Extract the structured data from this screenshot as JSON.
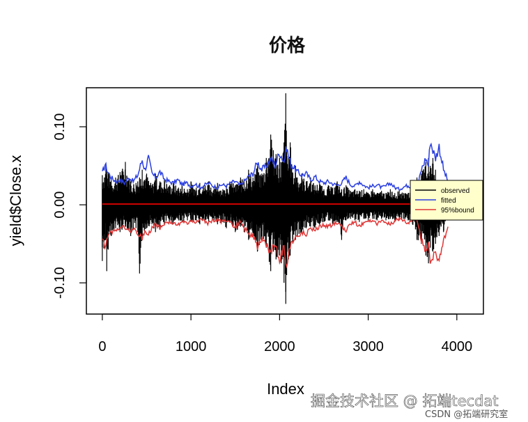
{
  "chart_data": {
    "type": "line",
    "title": "价格",
    "xlabel": "Index",
    "ylabel": "yield$Close.x",
    "xlim": [
      -180,
      4300
    ],
    "ylim": [
      -0.14,
      0.15
    ],
    "x_ticks": [
      0,
      1000,
      2000,
      3000,
      4000
    ],
    "x_tick_labels": [
      "0",
      "1000",
      "2000",
      "3000",
      "4000"
    ],
    "y_ticks": [
      -0.1,
      0.0,
      0.1
    ],
    "y_tick_labels": [
      "-0.10",
      "0.00",
      "0.10"
    ],
    "grid": false,
    "legend_position": "right",
    "series": [
      {
        "name": "observed",
        "color": "#000000",
        "style": "spikes",
        "x": [
          0,
          40,
          50,
          80,
          100,
          150,
          200,
          260,
          320,
          380,
          400,
          420,
          450,
          500,
          560,
          600,
          650,
          700,
          760,
          800,
          860,
          900,
          960,
          1000,
          1060,
          1100,
          1160,
          1200,
          1260,
          1300,
          1360,
          1400,
          1460,
          1500,
          1560,
          1600,
          1650,
          1700,
          1750,
          1800,
          1850,
          1900,
          1930,
          1960,
          2000,
          2020,
          2050,
          2070,
          2080,
          2100,
          2120,
          2150,
          2180,
          2200,
          2250,
          2300,
          2350,
          2400,
          2450,
          2500,
          2550,
          2600,
          2650,
          2700,
          2750,
          2800,
          2850,
          2900,
          2950,
          3000,
          3050,
          3100,
          3150,
          3200,
          3250,
          3300,
          3350,
          3400,
          3450,
          3500,
          3550,
          3600,
          3650,
          3680,
          3700,
          3730,
          3760,
          3800,
          3850,
          3900
        ],
        "high": [
          0.038,
          0.05,
          0.045,
          0.04,
          0.032,
          0.035,
          0.042,
          0.055,
          0.03,
          0.028,
          0.03,
          0.035,
          0.045,
          0.04,
          0.025,
          0.04,
          0.03,
          0.032,
          0.025,
          0.028,
          0.022,
          0.025,
          0.02,
          0.03,
          0.022,
          0.028,
          0.025,
          0.03,
          0.02,
          0.028,
          0.02,
          0.025,
          0.03,
          0.025,
          0.035,
          0.03,
          0.045,
          0.035,
          0.05,
          0.04,
          0.06,
          0.09,
          0.07,
          0.065,
          0.06,
          0.055,
          0.08,
          0.143,
          0.07,
          0.06,
          0.08,
          0.04,
          0.05,
          0.035,
          0.04,
          0.03,
          0.035,
          0.025,
          0.03,
          0.02,
          0.025,
          0.022,
          0.03,
          0.02,
          0.025,
          0.018,
          0.02,
          0.018,
          0.02,
          0.015,
          0.02,
          0.015,
          0.018,
          0.015,
          0.02,
          0.015,
          0.018,
          0.015,
          0.015,
          0.02,
          0.035,
          0.04,
          0.055,
          0.06,
          0.05,
          0.06,
          0.045,
          0.03,
          0.025,
          0.015
        ],
        "low": [
          -0.072,
          -0.045,
          -0.085,
          -0.035,
          -0.04,
          -0.03,
          -0.035,
          -0.028,
          -0.04,
          -0.03,
          -0.035,
          -0.088,
          -0.04,
          -0.03,
          -0.025,
          -0.035,
          -0.028,
          -0.025,
          -0.022,
          -0.025,
          -0.02,
          -0.022,
          -0.02,
          -0.022,
          -0.02,
          -0.025,
          -0.02,
          -0.022,
          -0.02,
          -0.025,
          -0.022,
          -0.03,
          -0.025,
          -0.035,
          -0.028,
          -0.035,
          -0.045,
          -0.04,
          -0.06,
          -0.045,
          -0.055,
          -0.085,
          -0.06,
          -0.07,
          -0.065,
          -0.075,
          -0.1,
          -0.127,
          -0.09,
          -0.07,
          -0.065,
          -0.05,
          -0.045,
          -0.04,
          -0.035,
          -0.03,
          -0.028,
          -0.03,
          -0.025,
          -0.022,
          -0.02,
          -0.025,
          -0.022,
          -0.045,
          -0.02,
          -0.018,
          -0.02,
          -0.022,
          -0.018,
          -0.02,
          -0.018,
          -0.02,
          -0.018,
          -0.02,
          -0.018,
          -0.022,
          -0.02,
          -0.018,
          -0.02,
          -0.025,
          -0.045,
          -0.05,
          -0.065,
          -0.075,
          -0.055,
          -0.06,
          -0.05,
          -0.04,
          -0.035,
          -0.02
        ]
      },
      {
        "name": "fitted",
        "color": "#2a3fe0",
        "style": "line",
        "x": [
          0,
          30,
          60,
          100,
          150,
          200,
          250,
          300,
          350,
          400,
          450,
          480,
          520,
          560,
          600,
          650,
          700,
          750,
          800,
          850,
          900,
          950,
          1000,
          1050,
          1100,
          1150,
          1200,
          1250,
          1300,
          1350,
          1400,
          1450,
          1500,
          1550,
          1600,
          1650,
          1700,
          1750,
          1800,
          1850,
          1900,
          1950,
          2000,
          2050,
          2080,
          2100,
          2130,
          2160,
          2200,
          2250,
          2300,
          2350,
          2400,
          2450,
          2500,
          2550,
          2600,
          2650,
          2700,
          2750,
          2800,
          2850,
          2900,
          2950,
          3000,
          3050,
          3100,
          3150,
          3200,
          3250,
          3300,
          3350,
          3400,
          3450,
          3500,
          3550,
          3600,
          3650,
          3680,
          3700,
          3730,
          3760,
          3800,
          3850,
          3900
        ],
        "values": [
          0.04,
          0.052,
          0.043,
          0.035,
          0.03,
          0.032,
          0.028,
          0.035,
          0.03,
          0.038,
          0.058,
          0.045,
          0.06,
          0.04,
          0.035,
          0.042,
          0.033,
          0.03,
          0.028,
          0.032,
          0.026,
          0.028,
          0.024,
          0.027,
          0.022,
          0.025,
          0.028,
          0.024,
          0.022,
          0.026,
          0.024,
          0.028,
          0.03,
          0.025,
          0.03,
          0.036,
          0.04,
          0.055,
          0.045,
          0.05,
          0.06,
          0.05,
          0.068,
          0.055,
          0.075,
          0.062,
          0.052,
          0.048,
          0.042,
          0.038,
          0.04,
          0.032,
          0.036,
          0.03,
          0.028,
          0.03,
          0.027,
          0.025,
          0.028,
          0.035,
          0.026,
          0.024,
          0.03,
          0.025,
          0.022,
          0.024,
          0.026,
          0.022,
          0.024,
          0.028,
          0.022,
          0.02,
          0.023,
          0.025,
          0.022,
          0.02,
          0.045,
          0.06,
          0.05,
          0.083,
          0.07,
          0.06,
          0.075,
          0.045,
          0.03
        ]
      },
      {
        "name": "95%bound",
        "color": "#e03535",
        "style": "line",
        "x": [
          0,
          30,
          60,
          100,
          150,
          200,
          250,
          300,
          350,
          400,
          450,
          480,
          520,
          560,
          600,
          650,
          700,
          750,
          800,
          850,
          900,
          950,
          1000,
          1050,
          1100,
          1150,
          1200,
          1250,
          1300,
          1350,
          1400,
          1450,
          1500,
          1550,
          1600,
          1650,
          1700,
          1750,
          1800,
          1850,
          1900,
          1950,
          2000,
          2050,
          2080,
          2100,
          2130,
          2160,
          2200,
          2250,
          2300,
          2350,
          2400,
          2450,
          2500,
          2550,
          2600,
          2650,
          2700,
          2750,
          2800,
          2850,
          2900,
          2950,
          3000,
          3050,
          3100,
          3150,
          3200,
          3250,
          3300,
          3350,
          3400,
          3450,
          3500,
          3550,
          3600,
          3650,
          3680,
          3700,
          3730,
          3760,
          3800,
          3850,
          3900
        ],
        "values": [
          -0.04,
          -0.052,
          -0.043,
          -0.035,
          -0.03,
          -0.032,
          -0.028,
          -0.035,
          -0.03,
          -0.038,
          -0.042,
          -0.032,
          -0.04,
          -0.028,
          -0.025,
          -0.03,
          -0.024,
          -0.022,
          -0.024,
          -0.026,
          -0.022,
          -0.024,
          -0.02,
          -0.022,
          -0.019,
          -0.021,
          -0.024,
          -0.02,
          -0.019,
          -0.022,
          -0.02,
          -0.024,
          -0.028,
          -0.022,
          -0.03,
          -0.036,
          -0.04,
          -0.055,
          -0.045,
          -0.05,
          -0.062,
          -0.05,
          -0.07,
          -0.055,
          -0.078,
          -0.06,
          -0.05,
          -0.045,
          -0.04,
          -0.036,
          -0.038,
          -0.03,
          -0.034,
          -0.028,
          -0.026,
          -0.028,
          -0.025,
          -0.023,
          -0.026,
          -0.034,
          -0.024,
          -0.022,
          -0.028,
          -0.023,
          -0.02,
          -0.022,
          -0.024,
          -0.02,
          -0.022,
          -0.026,
          -0.02,
          -0.018,
          -0.021,
          -0.023,
          -0.02,
          -0.018,
          -0.045,
          -0.06,
          -0.05,
          -0.083,
          -0.07,
          -0.06,
          -0.075,
          -0.045,
          -0.03
        ]
      },
      {
        "name": "zero-line",
        "color": "#cc0000",
        "style": "hline",
        "x": [
          0,
          3900
        ],
        "values": [
          0.001,
          0.001
        ]
      }
    ],
    "legend": [
      "observed",
      "fitted",
      "95%bound"
    ]
  },
  "watermark": {
    "line1": "掘金技术社区 @ 拓端tecdat",
    "line2": "CSDN @拓端研究室"
  },
  "colors": {
    "legend_bg": "#ffffcc",
    "axis": "#000000"
  }
}
